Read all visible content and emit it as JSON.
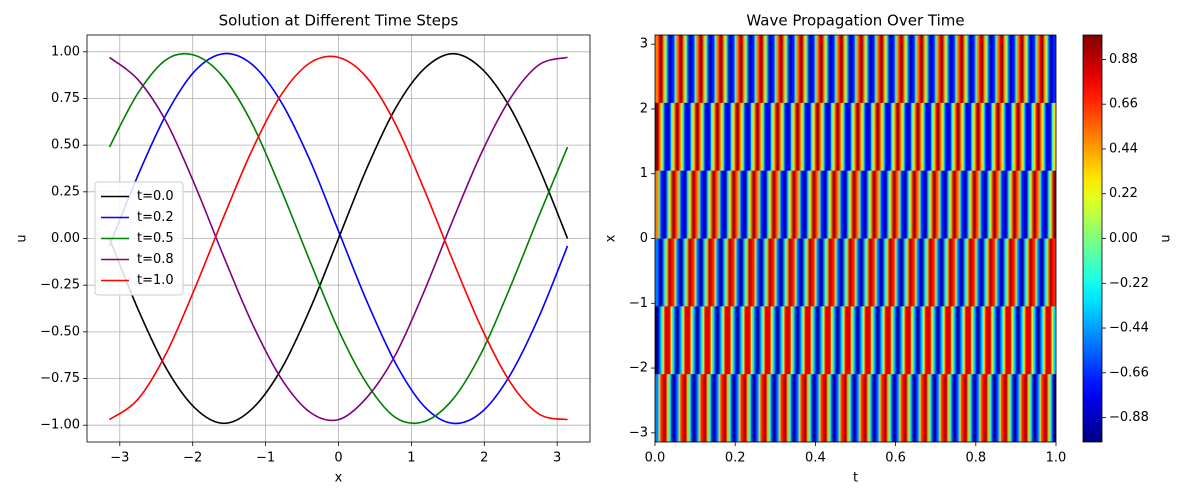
{
  "chart_data": [
    {
      "type": "line",
      "title": "Solution at Different Time Steps",
      "xlabel": "x",
      "ylabel": "u",
      "x": [
        -3.1416,
        -2.7489,
        -2.3562,
        -1.9635,
        -1.5708,
        -1.1781,
        -0.7854,
        -0.3927,
        0,
        0.3927,
        0.7854,
        1.1781,
        1.5708,
        1.9635,
        2.3562,
        2.7489,
        3.1416
      ],
      "series": [
        {
          "name": "t=0.0",
          "color": "#000000",
          "values": [
            0,
            -0.38,
            -0.7,
            -0.91,
            -0.99,
            -0.91,
            -0.7,
            -0.38,
            0,
            0.38,
            0.7,
            0.91,
            0.99,
            0.91,
            0.7,
            0.38,
            0
          ]
        },
        {
          "name": "t=0.2",
          "color": "#0000ff",
          "values": [
            -0.04,
            0.34,
            0.67,
            0.9,
            0.99,
            0.93,
            0.73,
            0.42,
            0.04,
            -0.34,
            -0.67,
            -0.9,
            -0.99,
            -0.93,
            -0.73,
            -0.42,
            -0.04
          ]
        },
        {
          "name": "t=0.5",
          "color": "#008000",
          "values": [
            0.49,
            0.78,
            0.96,
            0.98,
            0.86,
            0.61,
            0.26,
            -0.12,
            -0.49,
            -0.78,
            -0.96,
            -0.98,
            -0.86,
            -0.61,
            -0.26,
            0.12,
            0.49
          ]
        },
        {
          "name": "t=0.8",
          "color": "#800080",
          "values": [
            0.97,
            0.85,
            0.62,
            0.28,
            -0.1,
            -0.46,
            -0.75,
            -0.93,
            -0.97,
            -0.85,
            -0.62,
            -0.28,
            0.1,
            0.46,
            0.75,
            0.93,
            0.97
          ]
        },
        {
          "name": "t=1.0",
          "color": "#ff0000",
          "values": [
            -0.97,
            -0.86,
            -0.61,
            -0.26,
            0.12,
            0.48,
            0.77,
            0.94,
            0.97,
            0.86,
            0.61,
            0.26,
            -0.12,
            -0.48,
            -0.77,
            -0.94,
            -0.97
          ]
        }
      ],
      "xlim": [
        -3.45,
        3.45
      ],
      "ylim": [
        -1.09,
        1.09
      ],
      "xticks": [
        {
          "value": -3,
          "label": "−3"
        },
        {
          "value": -2,
          "label": "−2"
        },
        {
          "value": -1,
          "label": "−1"
        },
        0,
        1,
        2,
        3
      ],
      "yticks": [
        {
          "value": -1,
          "label": "−1.00"
        },
        {
          "value": -0.75,
          "label": "−0.75"
        },
        {
          "value": -0.5,
          "label": "−0.50"
        },
        {
          "value": -0.25,
          "label": "−0.25"
        },
        {
          "value": 0,
          "label": "0.00"
        },
        0.25,
        {
          "value": 0.5,
          "label": "0.50"
        },
        0.75,
        {
          "value": 1,
          "label": "1.00"
        }
      ],
      "grid": true,
      "legend": "center left"
    },
    {
      "type": "heatmap",
      "title": "Wave Propagation Over Time",
      "xlabel": "t",
      "ylabel": "x",
      "xlim": [
        0,
        1
      ],
      "ylim": [
        -3.1416,
        3.1416
      ],
      "xticks": [
        {
          "value": 0,
          "label": "0.0"
        },
        0.2,
        0.4,
        0.6,
        0.8,
        {
          "value": 1,
          "label": "1.0"
        }
      ],
      "yticks": [
        {
          "value": -3,
          "label": "−3"
        },
        {
          "value": -2,
          "label": "−2"
        },
        {
          "value": -1,
          "label": "−1"
        },
        0,
        1,
        2,
        3
      ],
      "colormap": "jet",
      "clim": [
        -1,
        1
      ],
      "colorbar_label": "u",
      "colorbar_ticks": [
        {
          "value": -0.88,
          "label": "−0.88"
        },
        {
          "value": -0.66,
          "label": "−0.66"
        },
        {
          "value": -0.44,
          "label": "−0.44"
        },
        {
          "value": -0.22,
          "label": "−0.22"
        },
        {
          "value": 0,
          "label": "0.00"
        },
        0.22,
        0.44,
        0.66,
        0.88
      ],
      "z": [
        [
          -0.5,
          0.67,
          0.91,
          -0.1,
          -0.98,
          -0.5,
          0.67,
          0.91,
          -0.1,
          -0.98,
          -0.5,
          0.67,
          0.91,
          -0.1,
          -0.98,
          -0.5,
          0.67,
          0.91,
          -0.1,
          -0.98,
          -0.5,
          0.67,
          0.91,
          -0.1,
          -0.98,
          -0.5,
          0.67,
          0.91,
          -0.1,
          -0.98,
          -0.5,
          0.67,
          0.91,
          -0.1,
          -0.98,
          -0.5,
          0.67,
          0.91,
          -0.1,
          -0.98,
          -0.5,
          0.67,
          0.91,
          -0.1,
          -0.98,
          -0.5,
          0.67,
          0.91,
          -0.1,
          -0.98,
          -0.5,
          0.67,
          0.91,
          -0.1,
          -0.98,
          -0.5,
          0.67,
          0.91,
          -0.1,
          -0.98,
          -0.5,
          0.67,
          0.91,
          -0.1,
          -0.98,
          -0.5,
          0.67,
          0.91,
          -0.1,
          -0.98,
          -0.5,
          0.67,
          0.91,
          -0.1,
          -0.98,
          -0.5,
          0.67,
          0.91,
          -0.1,
          -0.98,
          -0.5,
          0.67,
          0.91,
          -0.1,
          -0.98,
          -0.5,
          0.67,
          0.91,
          -0.1,
          -0.98,
          -0.5,
          0.67,
          0.91,
          -0.1,
          -0.98,
          -0.5,
          0.67,
          0.91,
          -0.1,
          -0.98
        ],
        [
          -1,
          -0.31,
          0.81,
          0.81,
          -0.31,
          -1,
          -0.31,
          0.81,
          0.81,
          -0.31,
          -1,
          -0.31,
          0.81,
          0.81,
          -0.31,
          -1,
          -0.31,
          0.81,
          0.81,
          -0.31,
          -1,
          -0.31,
          0.81,
          0.81,
          -0.31,
          -1,
          -0.31,
          0.81,
          0.81,
          -0.31,
          -1,
          -0.31,
          0.81,
          0.81,
          -0.31,
          -1,
          -0.31,
          0.81,
          0.81,
          -0.31,
          -1,
          -0.31,
          0.81,
          0.81,
          -0.31,
          -1,
          -0.31,
          0.81,
          0.81,
          -0.31,
          -1,
          -0.31,
          0.81,
          0.81,
          -0.31,
          -1,
          -0.31,
          0.81,
          0.81,
          -0.31,
          -1,
          -0.31,
          0.81,
          0.81,
          -0.31,
          -1,
          -0.31,
          0.81,
          0.81,
          -0.31,
          -1,
          -0.31,
          0.81,
          0.81,
          -0.31,
          -1,
          -0.31,
          0.81,
          0.81,
          -0.31,
          -1,
          -0.31,
          0.81,
          0.81,
          -0.31,
          -1,
          -0.31,
          0.81,
          0.81,
          -0.31,
          -1,
          -0.31,
          0.81,
          0.81,
          -0.31,
          -1,
          -0.31,
          0.81,
          0.81,
          -0.31
        ],
        [
          -0.5,
          -0.98,
          -0.1,
          0.91,
          0.67,
          -0.5,
          -0.98,
          -0.1,
          0.91,
          0.67,
          -0.5,
          -0.98,
          -0.1,
          0.91,
          0.67,
          -0.5,
          -0.98,
          -0.1,
          0.91,
          0.67,
          -0.5,
          -0.98,
          -0.1,
          0.91,
          0.67,
          -0.5,
          -0.98,
          -0.1,
          0.91,
          0.67,
          -0.5,
          -0.98,
          -0.1,
          0.91,
          0.67,
          -0.5,
          -0.98,
          -0.1,
          0.91,
          0.67,
          -0.5,
          -0.98,
          -0.1,
          0.91,
          0.67,
          -0.5,
          -0.98,
          -0.1,
          0.91,
          0.67,
          -0.5,
          -0.98,
          -0.1,
          0.91,
          0.67,
          -0.5,
          -0.98,
          -0.1,
          0.91,
          0.67,
          -0.5,
          -0.98,
          -0.1,
          0.91,
          0.67,
          -0.5,
          -0.98,
          -0.1,
          0.91,
          0.67,
          -0.5,
          -0.98,
          -0.1,
          0.91,
          0.67,
          -0.5,
          -0.98,
          -0.1,
          0.91,
          0.67,
          -0.5,
          -0.98,
          -0.1,
          0.91,
          0.67,
          -0.5,
          -0.98,
          -0.1,
          0.91,
          0.67,
          -0.5,
          -0.98,
          -0.1,
          0.91,
          0.67,
          -0.5,
          -0.98,
          -0.1,
          0.91,
          0.67
        ],
        [
          0.5,
          -0.67,
          -0.91,
          0.1,
          0.98,
          0.5,
          -0.67,
          -0.91,
          0.1,
          0.98,
          0.5,
          -0.67,
          -0.91,
          0.1,
          0.98,
          0.5,
          -0.67,
          -0.91,
          0.1,
          0.98,
          0.5,
          -0.67,
          -0.91,
          0.1,
          0.98,
          0.5,
          -0.67,
          -0.91,
          0.1,
          0.98,
          0.5,
          -0.67,
          -0.91,
          0.1,
          0.98,
          0.5,
          -0.67,
          -0.91,
          0.1,
          0.98,
          0.5,
          -0.67,
          -0.91,
          0.1,
          0.98,
          0.5,
          -0.67,
          -0.91,
          0.1,
          0.98,
          0.5,
          -0.67,
          -0.91,
          0.1,
          0.98,
          0.5,
          -0.67,
          -0.91,
          0.1,
          0.98,
          0.5,
          -0.67,
          -0.91,
          0.1,
          0.98,
          0.5,
          -0.67,
          -0.91,
          0.1,
          0.98,
          0.5,
          -0.67,
          -0.91,
          0.1,
          0.98,
          0.5,
          -0.67,
          -0.91,
          0.1,
          0.98,
          0.5,
          -0.67,
          -0.91,
          0.1,
          0.98,
          0.5,
          -0.67,
          -0.91,
          0.1,
          0.98,
          0.5,
          -0.67,
          -0.91,
          0.1,
          0.98,
          0.5,
          -0.67,
          -0.91,
          0.1,
          0.98
        ],
        [
          1,
          0.31,
          -0.81,
          -0.81,
          0.31,
          1,
          0.31,
          -0.81,
          -0.81,
          0.31,
          1,
          0.31,
          -0.81,
          -0.81,
          0.31,
          1,
          0.31,
          -0.81,
          -0.81,
          0.31,
          1,
          0.31,
          -0.81,
          -0.81,
          0.31,
          1,
          0.31,
          -0.81,
          -0.81,
          0.31,
          1,
          0.31,
          -0.81,
          -0.81,
          0.31,
          1,
          0.31,
          -0.81,
          -0.81,
          0.31,
          1,
          0.31,
          -0.81,
          -0.81,
          0.31,
          1,
          0.31,
          -0.81,
          -0.81,
          0.31,
          1,
          0.31,
          -0.81,
          -0.81,
          0.31,
          1,
          0.31,
          -0.81,
          -0.81,
          0.31,
          1,
          0.31,
          -0.81,
          -0.81,
          0.31,
          1,
          0.31,
          -0.81,
          -0.81,
          0.31,
          1,
          0.31,
          -0.81,
          -0.81,
          0.31,
          1,
          0.31,
          -0.81,
          -0.81,
          0.31,
          1,
          0.31,
          -0.81,
          -0.81,
          0.31,
          1,
          0.31,
          -0.81,
          -0.81,
          0.31,
          1,
          0.31,
          -0.81,
          -0.81,
          0.31,
          1,
          0.31,
          -0.81,
          -0.81,
          0.31
        ],
        [
          0.5,
          0.98,
          0.1,
          -0.91,
          -0.67,
          0.5,
          0.98,
          0.1,
          -0.91,
          -0.67,
          0.5,
          0.98,
          0.1,
          -0.91,
          -0.67,
          0.5,
          0.98,
          0.1,
          -0.91,
          -0.67,
          0.5,
          0.98,
          0.1,
          -0.91,
          -0.67,
          0.5,
          0.98,
          0.1,
          -0.91,
          -0.67,
          0.5,
          0.98,
          0.1,
          -0.91,
          -0.67,
          0.5,
          0.98,
          0.1,
          -0.91,
          -0.67,
          0.5,
          0.98,
          0.1,
          -0.91,
          -0.67,
          0.5,
          0.98,
          0.1,
          -0.91,
          -0.67,
          0.5,
          0.98,
          0.1,
          -0.91,
          -0.67,
          0.5,
          0.98,
          0.1,
          -0.91,
          -0.67,
          0.5,
          0.98,
          0.1,
          -0.91,
          -0.67,
          0.5,
          0.98,
          0.1,
          -0.91,
          -0.67,
          0.5,
          0.98,
          0.1,
          -0.91,
          -0.67,
          0.5,
          0.98,
          0.1,
          -0.91,
          -0.67,
          0.5,
          0.98,
          0.1,
          -0.91,
          -0.67,
          0.5,
          0.98,
          0.1,
          -0.91,
          -0.67,
          0.5,
          0.98,
          0.1,
          -0.91,
          -0.67,
          0.5,
          0.98,
          0.1,
          -0.91,
          -0.67
        ]
      ]
    }
  ]
}
